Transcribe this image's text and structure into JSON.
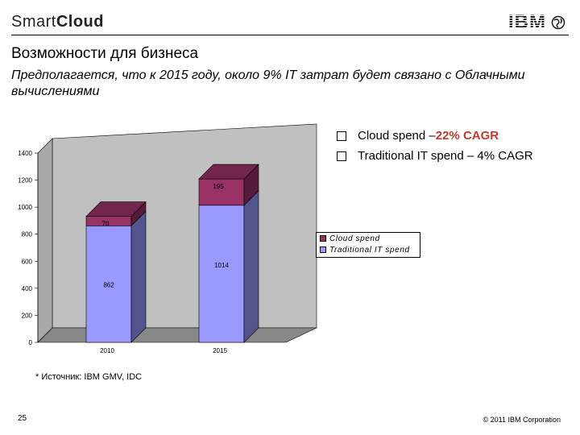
{
  "header": {
    "brand_light": "Smart",
    "brand_bold": "Cloud",
    "logo_text": "IBM"
  },
  "title": "Возможности для бизнеса",
  "subtitle": "Предполагается, что к 2015 году, около 9% IT затрат будет связано с Облачными вычислениями",
  "bullets": [
    {
      "prefix": "Cloud spend – ",
      "highlight": "22% CAGR",
      "suffix": ""
    },
    {
      "prefix": "Traditional IT spend – 4% CAGR",
      "highlight": "",
      "suffix": ""
    }
  ],
  "chart_data": {
    "type": "bar",
    "stacked": true,
    "three_d": true,
    "categories": [
      "2010",
      "2015"
    ],
    "series": [
      {
        "name": "Traditional IT spend",
        "values": [
          862,
          1014
        ],
        "color": "#9999ff"
      },
      {
        "name": "Cloud spend",
        "values": [
          70,
          195
        ],
        "color": "#993366"
      }
    ],
    "y_ticks": [
      "0",
      "200",
      "400",
      "600",
      "800",
      "1000",
      "1200",
      "1400"
    ],
    "ylim": [
      0,
      1400
    ],
    "grid": false,
    "wall_color": "#c0c0c0",
    "legend_position": "right"
  },
  "source": "* Источник: IBM GMV, IDC",
  "footer": {
    "page_number": "25",
    "copyright": "© 2011 IBM Corporation"
  }
}
